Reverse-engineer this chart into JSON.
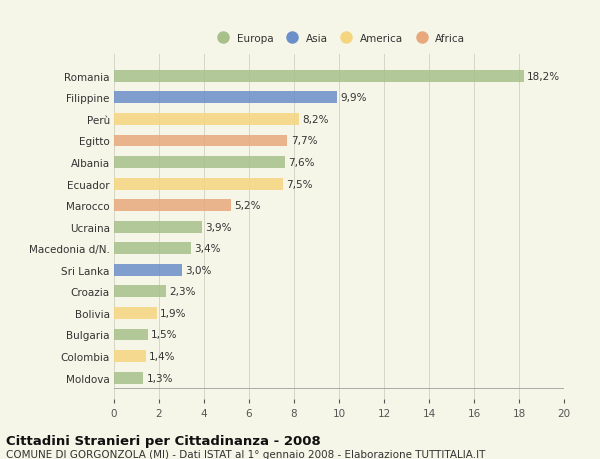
{
  "categories": [
    "Romania",
    "Filippine",
    "Perù",
    "Egitto",
    "Albania",
    "Ecuador",
    "Marocco",
    "Ucraina",
    "Macedonia d/N.",
    "Sri Lanka",
    "Croazia",
    "Bolivia",
    "Bulgaria",
    "Colombia",
    "Moldova"
  ],
  "values": [
    18.2,
    9.9,
    8.2,
    7.7,
    7.6,
    7.5,
    5.2,
    3.9,
    3.4,
    3.0,
    2.3,
    1.9,
    1.5,
    1.4,
    1.3
  ],
  "labels": [
    "18,2%",
    "9,9%",
    "8,2%",
    "7,7%",
    "7,6%",
    "7,5%",
    "5,2%",
    "3,9%",
    "3,4%",
    "3,0%",
    "2,3%",
    "1,9%",
    "1,5%",
    "1,4%",
    "1,3%"
  ],
  "colors": [
    "#a8c08a",
    "#6b8fc9",
    "#f5d580",
    "#e8a87c",
    "#a8c08a",
    "#f5d580",
    "#e8a87c",
    "#a8c08a",
    "#a8c08a",
    "#6b8fc9",
    "#a8c08a",
    "#f5d580",
    "#a8c08a",
    "#f5d580",
    "#a8c08a"
  ],
  "legend_labels": [
    "Europa",
    "Asia",
    "America",
    "Africa"
  ],
  "legend_colors": [
    "#a8c08a",
    "#6b8fc9",
    "#f5d580",
    "#e8a87c"
  ],
  "xlim": [
    0,
    20
  ],
  "xticks": [
    0,
    2,
    4,
    6,
    8,
    10,
    12,
    14,
    16,
    18,
    20
  ],
  "title": "Cittadini Stranieri per Cittadinanza - 2008",
  "subtitle": "COMUNE DI GORGONZOLA (MI) - Dati ISTAT al 1° gennaio 2008 - Elaborazione TUTTITALIA.IT",
  "background_color": "#f5f5e8",
  "bar_height": 0.55,
  "label_fontsize": 7.5,
  "ylabel_fontsize": 7.5,
  "xlabel_fontsize": 7.5,
  "title_fontsize": 9.5,
  "subtitle_fontsize": 7.5
}
